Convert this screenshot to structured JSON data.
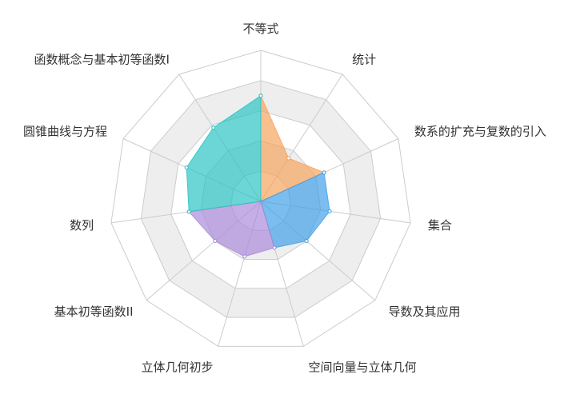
{
  "chart_data": {
    "type": "radar",
    "indicators": [
      "不等式",
      "统计",
      "数系的扩充与复数的引入",
      "集合",
      "导数及其应用",
      "空间向量与立体几何",
      "立体几何初步",
      "基本初等函数II",
      "数列",
      "圆锥曲线与方程",
      "函数概念与基本初等函数I"
    ],
    "max": 5,
    "split_number": 5,
    "split_area_colors": [
      "#ffffff",
      "#eeeeee"
    ],
    "axis_line_color": "#cccccc",
    "sectors": [
      {
        "from": 0,
        "to": 2,
        "values": [
          3.5,
          1.7,
          2.3
        ],
        "color": "#f5a05a"
      },
      {
        "from": 2,
        "to": 5,
        "values": [
          2.3,
          2.3,
          2.0,
          1.6
        ],
        "color": "#3c9ee8"
      },
      {
        "from": 5,
        "to": 8,
        "values": [
          1.6,
          1.9,
          2.0,
          2.4
        ],
        "color": "#a887d8"
      },
      {
        "from": 8,
        "to": 11,
        "values": [
          2.4,
          2.7,
          2.9,
          3.5
        ],
        "color": "#26c2c2"
      }
    ],
    "legend": "none",
    "grid": true
  }
}
